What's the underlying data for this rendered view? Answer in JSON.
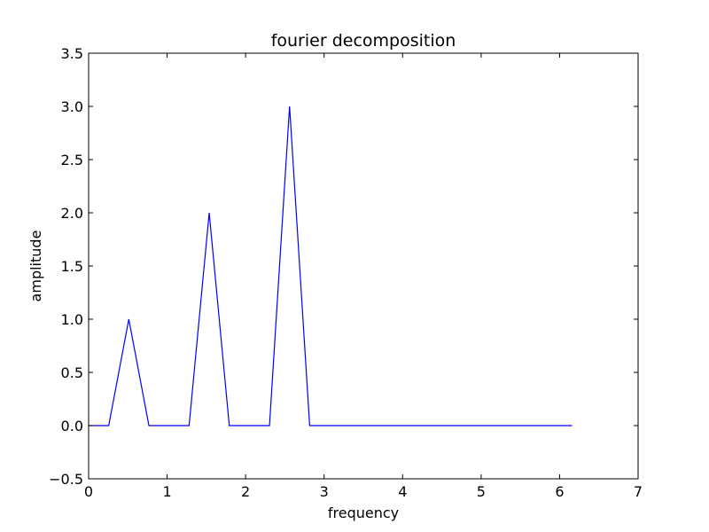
{
  "chart_data": {
    "type": "line",
    "title": "fourier decomposition",
    "xlabel": "frequency",
    "ylabel": "amplitude",
    "xlim": [
      0,
      7
    ],
    "ylim": [
      -0.5,
      3.5
    ],
    "xticks": [
      0,
      1,
      2,
      3,
      4,
      5,
      6,
      7
    ],
    "xtick_labels": [
      "0",
      "1",
      "2",
      "3",
      "4",
      "5",
      "6",
      "7"
    ],
    "yticks": [
      -0.5,
      0.0,
      0.5,
      1.0,
      1.5,
      2.0,
      2.5,
      3.0,
      3.5
    ],
    "ytick_labels": [
      "−0.5",
      "0.0",
      "0.5",
      "1.0",
      "1.5",
      "2.0",
      "2.5",
      "3.0",
      "3.5"
    ],
    "grid": false,
    "series": [
      {
        "color": "#0000ff",
        "x": [
          0.0,
          0.256,
          0.512,
          0.768,
          1.28,
          1.536,
          1.792,
          2.304,
          2.56,
          2.816,
          6.16
        ],
        "y": [
          0.0,
          0.0,
          1.0,
          0.0,
          0.0,
          2.0,
          0.0,
          0.0,
          3.0,
          0.0,
          0.0
        ]
      }
    ]
  }
}
